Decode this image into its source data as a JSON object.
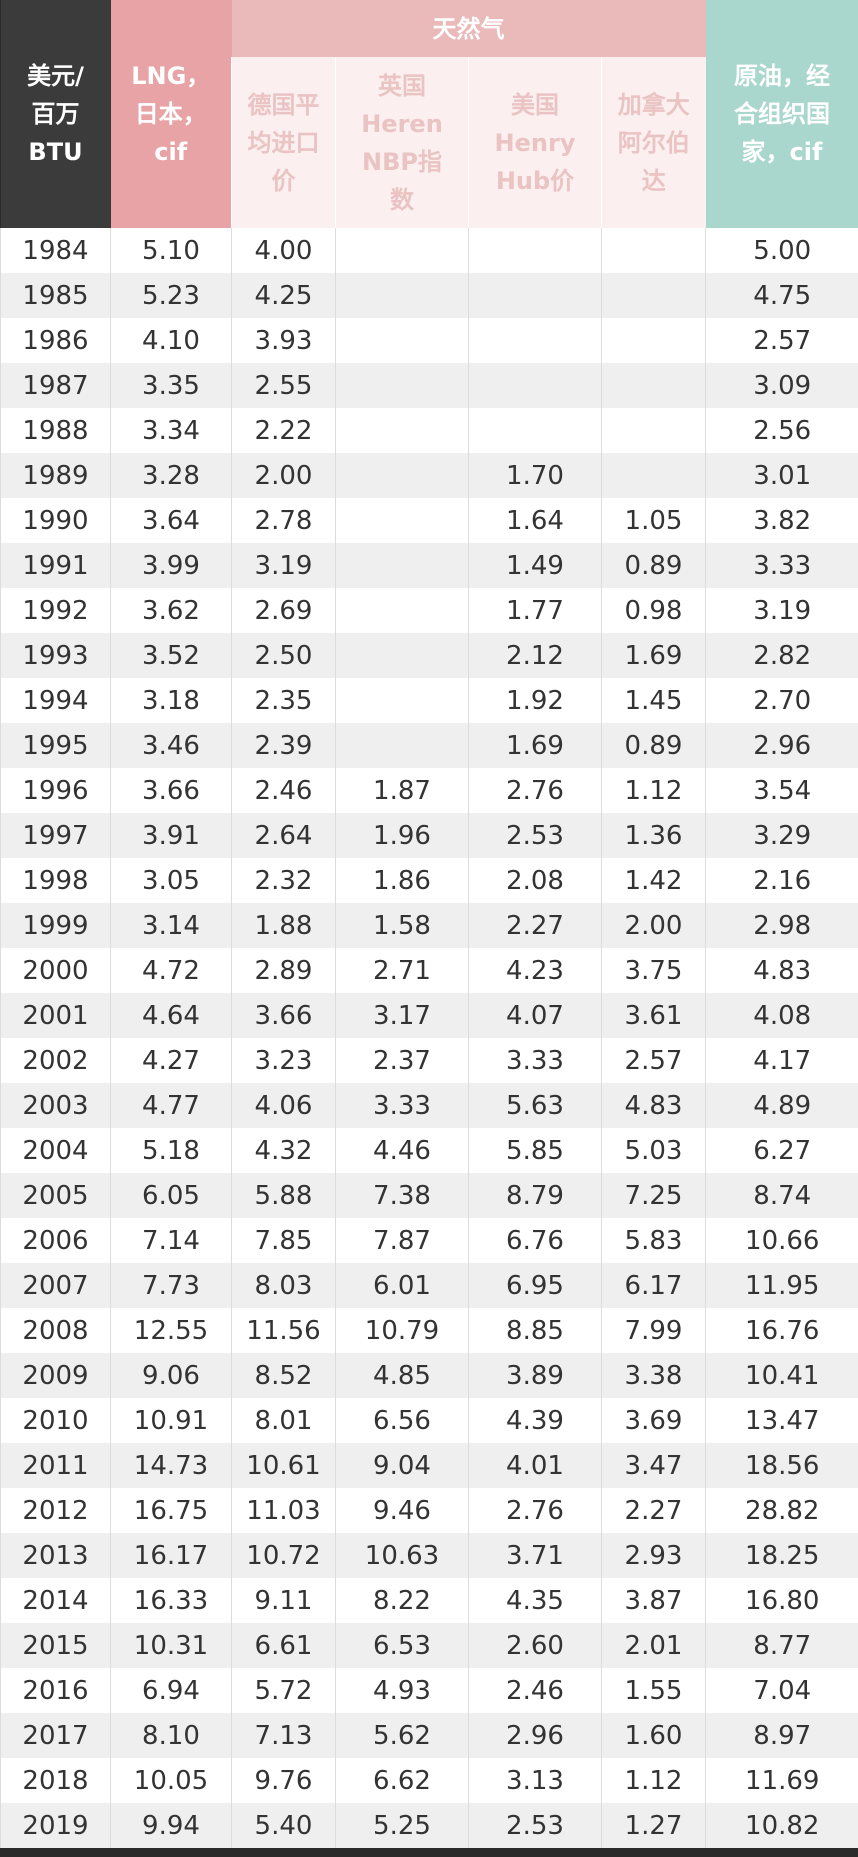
{
  "header": {
    "unit": "美元/\n百万\nBTU",
    "lng": "LNG，\n日本，\ncif",
    "group": "天然气",
    "subs": [
      "德国平\n均进口\n价",
      "英国\nHeren\nNBP指\n数",
      "美国\nHenry\nHub价",
      "加拿大\n阿尔伯\n达"
    ],
    "oil": "原油，经\n合组织国\n家，cif"
  },
  "table": {
    "rows": [
      [
        "1984",
        "5.10",
        "4.00",
        null,
        null,
        null,
        "5.00"
      ],
      [
        "1985",
        "5.23",
        "4.25",
        null,
        null,
        null,
        "4.75"
      ],
      [
        "1986",
        "4.10",
        "3.93",
        null,
        null,
        null,
        "2.57"
      ],
      [
        "1987",
        "3.35",
        "2.55",
        null,
        null,
        null,
        "3.09"
      ],
      [
        "1988",
        "3.34",
        "2.22",
        null,
        null,
        null,
        "2.56"
      ],
      [
        "1989",
        "3.28",
        "2.00",
        null,
        "1.70",
        null,
        "3.01"
      ],
      [
        "1990",
        "3.64",
        "2.78",
        null,
        "1.64",
        "1.05",
        "3.82"
      ],
      [
        "1991",
        "3.99",
        "3.19",
        null,
        "1.49",
        "0.89",
        "3.33"
      ],
      [
        "1992",
        "3.62",
        "2.69",
        null,
        "1.77",
        "0.98",
        "3.19"
      ],
      [
        "1993",
        "3.52",
        "2.50",
        null,
        "2.12",
        "1.69",
        "2.82"
      ],
      [
        "1994",
        "3.18",
        "2.35",
        null,
        "1.92",
        "1.45",
        "2.70"
      ],
      [
        "1995",
        "3.46",
        "2.39",
        null,
        "1.69",
        "0.89",
        "2.96"
      ],
      [
        "1996",
        "3.66",
        "2.46",
        "1.87",
        "2.76",
        "1.12",
        "3.54"
      ],
      [
        "1997",
        "3.91",
        "2.64",
        "1.96",
        "2.53",
        "1.36",
        "3.29"
      ],
      [
        "1998",
        "3.05",
        "2.32",
        "1.86",
        "2.08",
        "1.42",
        "2.16"
      ],
      [
        "1999",
        "3.14",
        "1.88",
        "1.58",
        "2.27",
        "2.00",
        "2.98"
      ],
      [
        "2000",
        "4.72",
        "2.89",
        "2.71",
        "4.23",
        "3.75",
        "4.83"
      ],
      [
        "2001",
        "4.64",
        "3.66",
        "3.17",
        "4.07",
        "3.61",
        "4.08"
      ],
      [
        "2002",
        "4.27",
        "3.23",
        "2.37",
        "3.33",
        "2.57",
        "4.17"
      ],
      [
        "2003",
        "4.77",
        "4.06",
        "3.33",
        "5.63",
        "4.83",
        "4.89"
      ],
      [
        "2004",
        "5.18",
        "4.32",
        "4.46",
        "5.85",
        "5.03",
        "6.27"
      ],
      [
        "2005",
        "6.05",
        "5.88",
        "7.38",
        "8.79",
        "7.25",
        "8.74"
      ],
      [
        "2006",
        "7.14",
        "7.85",
        "7.87",
        "6.76",
        "5.83",
        "10.66"
      ],
      [
        "2007",
        "7.73",
        "8.03",
        "6.01",
        "6.95",
        "6.17",
        "11.95"
      ],
      [
        "2008",
        "12.55",
        "11.56",
        "10.79",
        "8.85",
        "7.99",
        "16.76"
      ],
      [
        "2009",
        "9.06",
        "8.52",
        "4.85",
        "3.89",
        "3.38",
        "10.41"
      ],
      [
        "2010",
        "10.91",
        "8.01",
        "6.56",
        "4.39",
        "3.69",
        "13.47"
      ],
      [
        "2011",
        "14.73",
        "10.61",
        "9.04",
        "4.01",
        "3.47",
        "18.56"
      ],
      [
        "2012",
        "16.75",
        "11.03",
        "9.46",
        "2.76",
        "2.27",
        "28.82"
      ],
      [
        "2013",
        "16.17",
        "10.72",
        "10.63",
        "3.71",
        "2.93",
        "18.25"
      ],
      [
        "2014",
        "16.33",
        "9.11",
        "8.22",
        "4.35",
        "3.87",
        "16.80"
      ],
      [
        "2015",
        "10.31",
        "6.61",
        "6.53",
        "2.60",
        "2.01",
        "8.77"
      ],
      [
        "2016",
        "6.94",
        "5.72",
        "4.93",
        "2.46",
        "1.55",
        "7.04"
      ],
      [
        "2017",
        "8.10",
        "7.13",
        "5.62",
        "2.96",
        "1.60",
        "8.97"
      ],
      [
        "2018",
        "10.05",
        "9.76",
        "6.62",
        "3.13",
        "1.12",
        "11.69"
      ],
      [
        "2019",
        "9.94",
        "5.40",
        "5.25",
        "2.53",
        "1.27",
        "10.82"
      ]
    ]
  }
}
